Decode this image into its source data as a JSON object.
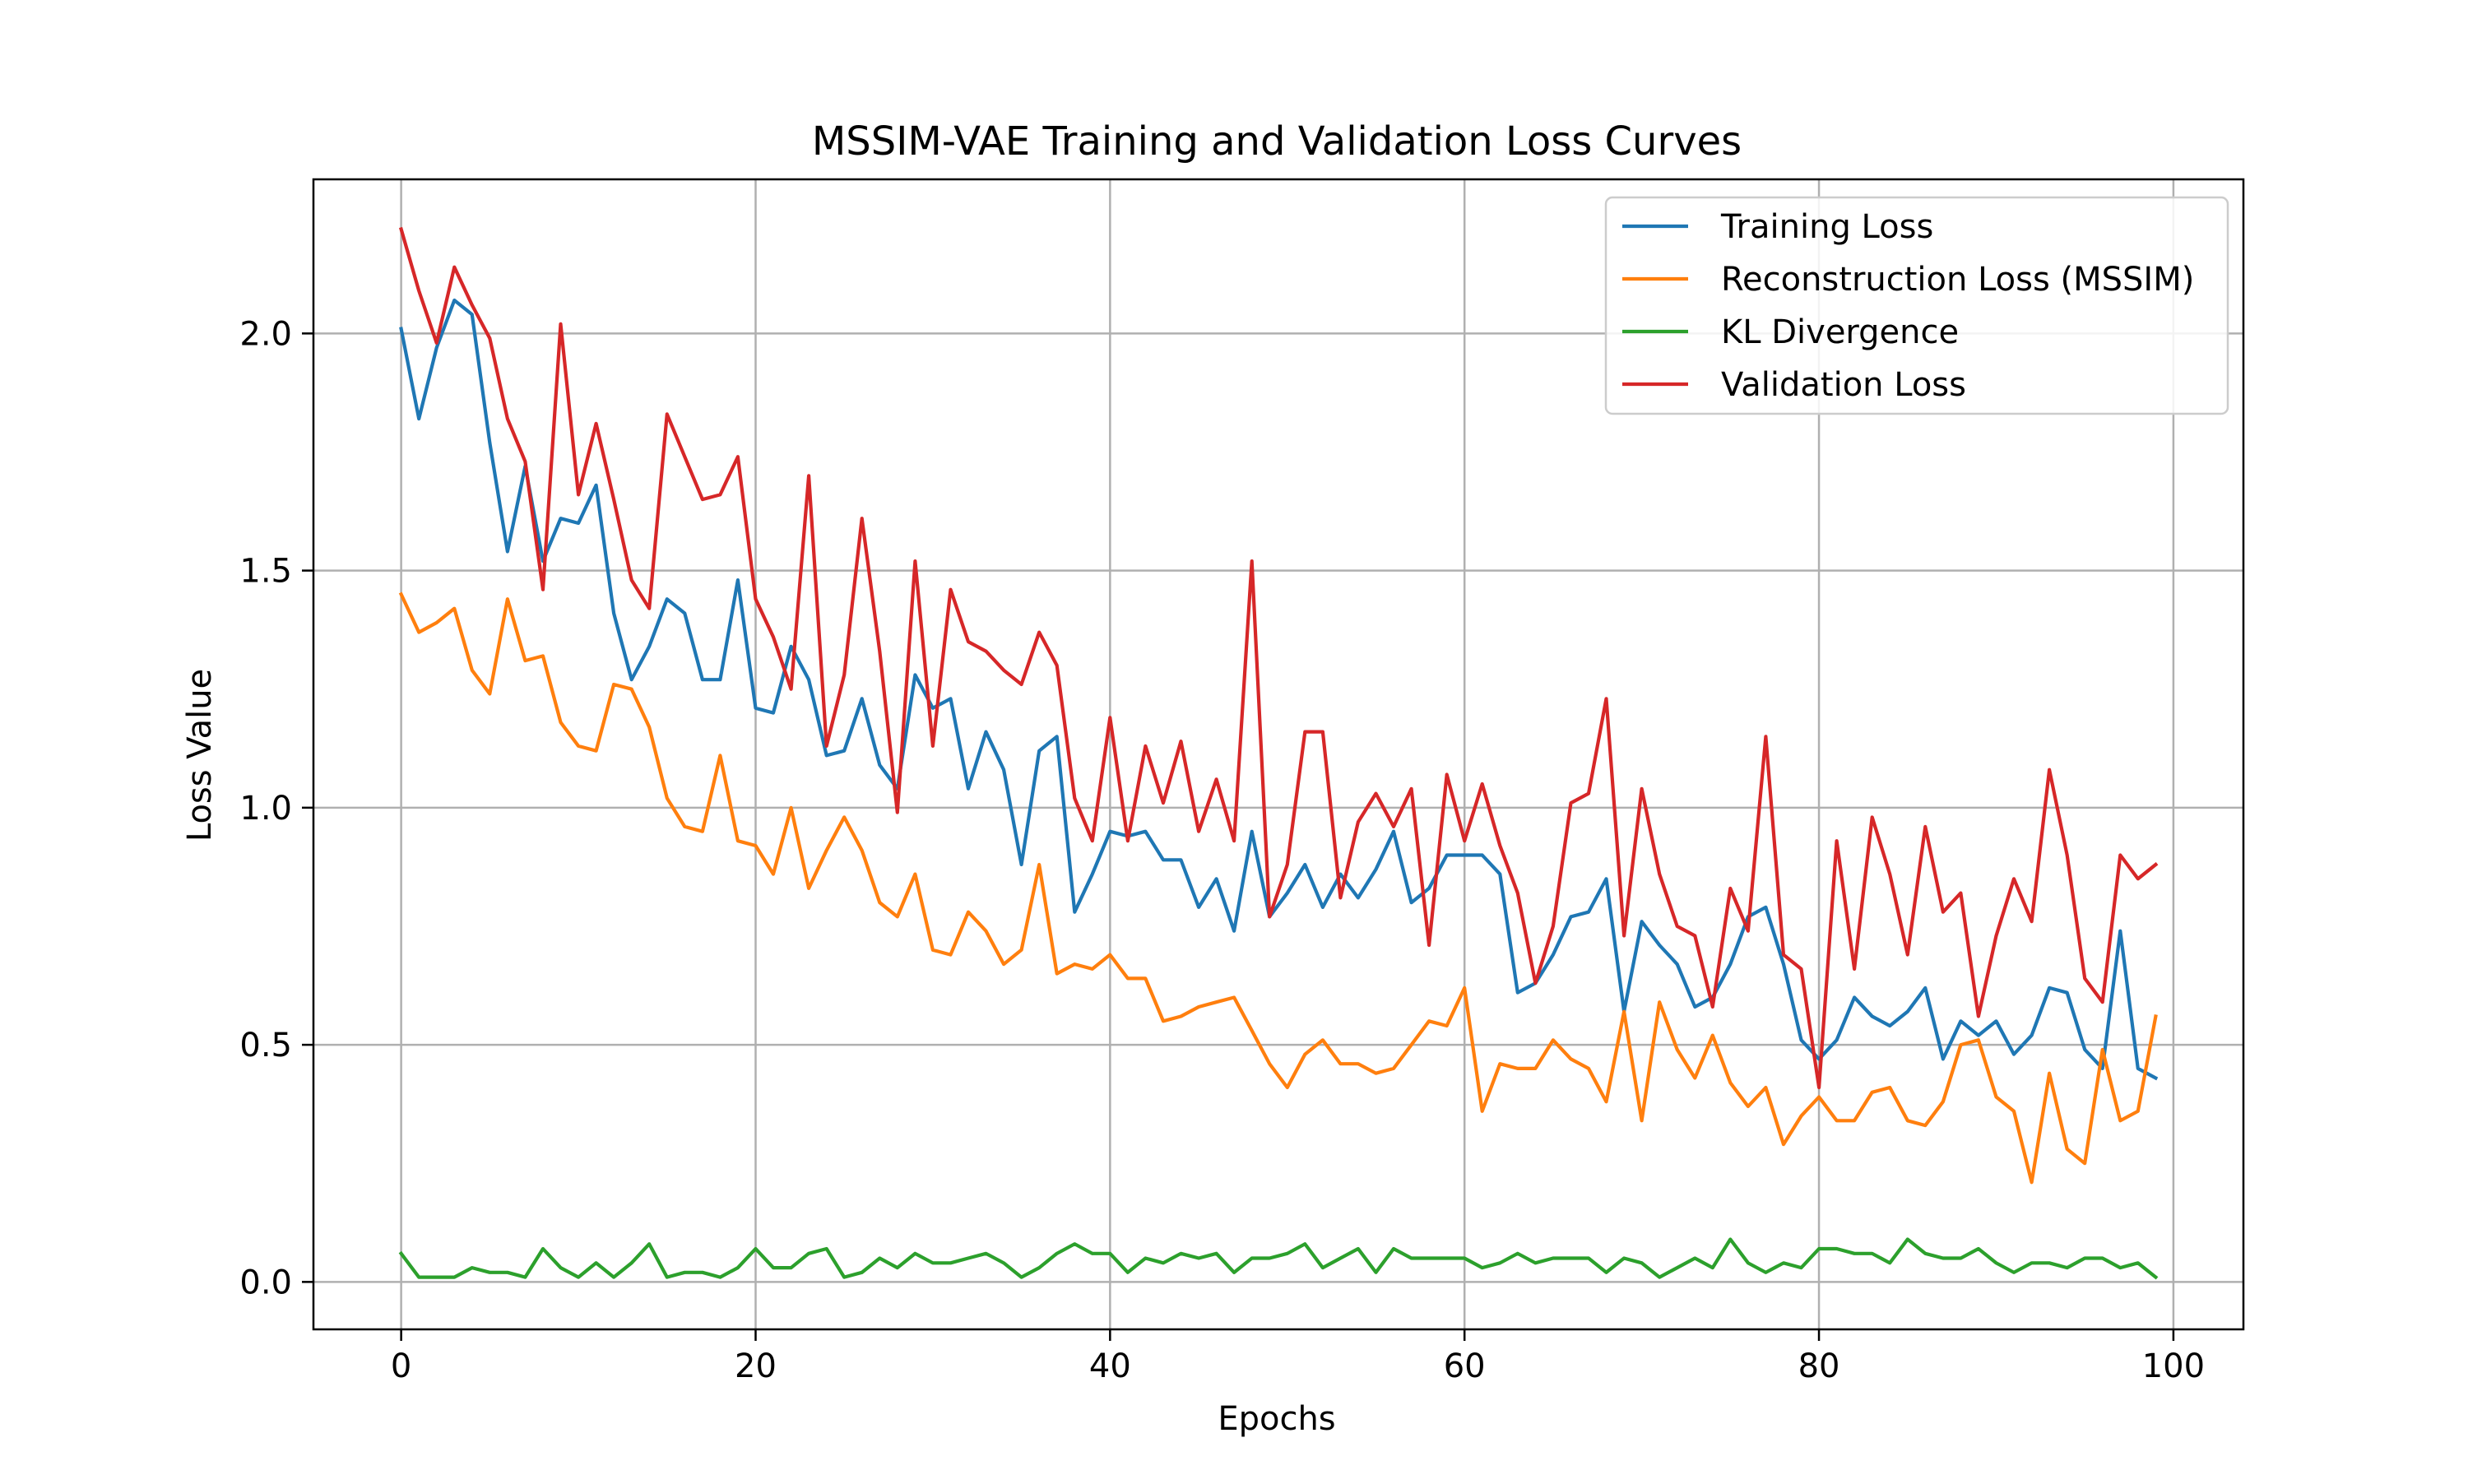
{
  "chart_data": {
    "type": "line",
    "title": "MSSIM-VAE Training and Validation Loss Curves",
    "xlabel": "Epochs",
    "ylabel": "Loss Value",
    "xlim": [
      -4.95,
      103.95
    ],
    "ylim": [
      -0.1,
      2.325
    ],
    "xticks": [
      0,
      20,
      40,
      60,
      80,
      100
    ],
    "yticks": [
      0.0,
      0.5,
      1.0,
      1.5,
      2.0
    ],
    "xtick_labels": [
      "0",
      "20",
      "40",
      "60",
      "80",
      "100"
    ],
    "ytick_labels": [
      "0.0",
      "0.5",
      "1.0",
      "1.5",
      "2.0"
    ],
    "grid": true,
    "legend_position": "top-right",
    "x": [
      0,
      1,
      2,
      3,
      4,
      5,
      6,
      7,
      8,
      9,
      10,
      11,
      12,
      13,
      14,
      15,
      16,
      17,
      18,
      19,
      20,
      21,
      22,
      23,
      24,
      25,
      26,
      27,
      28,
      29,
      30,
      31,
      32,
      33,
      34,
      35,
      36,
      37,
      38,
      39,
      40,
      41,
      42,
      43,
      44,
      45,
      46,
      47,
      48,
      49,
      50,
      51,
      52,
      53,
      54,
      55,
      56,
      57,
      58,
      59,
      60,
      61,
      62,
      63,
      64,
      65,
      66,
      67,
      68,
      69,
      70,
      71,
      72,
      73,
      74,
      75,
      76,
      77,
      78,
      79,
      80,
      81,
      82,
      83,
      84,
      85,
      86,
      87,
      88,
      89,
      90,
      91,
      92,
      93,
      94,
      95,
      96,
      97,
      98,
      99
    ],
    "series": [
      {
        "name": "Training Loss",
        "color": "#1f77b4",
        "values": [
          2.01,
          1.82,
          1.97,
          2.07,
          2.04,
          1.77,
          1.54,
          1.72,
          1.52,
          1.61,
          1.6,
          1.68,
          1.41,
          1.27,
          1.34,
          1.44,
          1.41,
          1.27,
          1.27,
          1.48,
          1.21,
          1.2,
          1.34,
          1.27,
          1.11,
          1.12,
          1.23,
          1.09,
          1.04,
          1.28,
          1.21,
          1.23,
          1.04,
          1.16,
          1.08,
          0.88,
          1.12,
          1.15,
          0.78,
          0.86,
          0.95,
          0.94,
          0.95,
          0.89,
          0.89,
          0.79,
          0.85,
          0.74,
          0.95,
          0.77,
          0.82,
          0.88,
          0.79,
          0.86,
          0.81,
          0.87,
          0.95,
          0.8,
          0.83,
          0.9,
          0.9,
          0.9,
          0.86,
          0.61,
          0.63,
          0.69,
          0.77,
          0.78,
          0.85,
          0.57,
          0.76,
          0.71,
          0.67,
          0.58,
          0.6,
          0.67,
          0.77,
          0.79,
          0.67,
          0.51,
          0.47,
          0.51,
          0.6,
          0.56,
          0.54,
          0.57,
          0.62,
          0.47,
          0.55,
          0.52,
          0.55,
          0.48,
          0.52,
          0.62,
          0.61,
          0.49,
          0.45,
          0.74,
          0.45,
          0.43
        ]
      },
      {
        "name": "Reconstruction Loss (MSSIM)",
        "color": "#ff7f0e",
        "values": [
          1.45,
          1.37,
          1.39,
          1.42,
          1.29,
          1.24,
          1.44,
          1.31,
          1.32,
          1.18,
          1.13,
          1.12,
          1.26,
          1.25,
          1.17,
          1.02,
          0.96,
          0.95,
          1.11,
          0.93,
          0.92,
          0.86,
          1.0,
          0.83,
          0.91,
          0.98,
          0.91,
          0.8,
          0.77,
          0.86,
          0.7,
          0.69,
          0.78,
          0.74,
          0.67,
          0.7,
          0.88,
          0.65,
          0.67,
          0.66,
          0.69,
          0.64,
          0.64,
          0.55,
          0.56,
          0.58,
          0.59,
          0.6,
          0.53,
          0.46,
          0.41,
          0.48,
          0.51,
          0.46,
          0.46,
          0.44,
          0.45,
          0.5,
          0.55,
          0.54,
          0.62,
          0.36,
          0.46,
          0.45,
          0.45,
          0.51,
          0.47,
          0.45,
          0.38,
          0.57,
          0.34,
          0.59,
          0.49,
          0.43,
          0.52,
          0.42,
          0.37,
          0.41,
          0.29,
          0.35,
          0.39,
          0.34,
          0.34,
          0.4,
          0.41,
          0.34,
          0.33,
          0.38,
          0.5,
          0.51,
          0.39,
          0.36,
          0.21,
          0.44,
          0.28,
          0.25,
          0.49,
          0.34,
          0.36,
          0.56
        ]
      },
      {
        "name": "KL Divergence",
        "color": "#2ca02c",
        "values": [
          0.06,
          0.01,
          0.01,
          0.01,
          0.03,
          0.02,
          0.02,
          0.01,
          0.07,
          0.03,
          0.01,
          0.04,
          0.01,
          0.04,
          0.08,
          0.01,
          0.02,
          0.02,
          0.01,
          0.03,
          0.07,
          0.03,
          0.03,
          0.06,
          0.07,
          0.01,
          0.02,
          0.05,
          0.03,
          0.06,
          0.04,
          0.04,
          0.05,
          0.06,
          0.04,
          0.01,
          0.03,
          0.06,
          0.08,
          0.06,
          0.06,
          0.02,
          0.05,
          0.04,
          0.06,
          0.05,
          0.06,
          0.02,
          0.05,
          0.05,
          0.06,
          0.08,
          0.03,
          0.05,
          0.07,
          0.02,
          0.07,
          0.05,
          0.05,
          0.05,
          0.05,
          0.03,
          0.04,
          0.06,
          0.04,
          0.05,
          0.05,
          0.05,
          0.02,
          0.05,
          0.04,
          0.01,
          0.03,
          0.05,
          0.03,
          0.09,
          0.04,
          0.02,
          0.04,
          0.03,
          0.07,
          0.07,
          0.06,
          0.06,
          0.04,
          0.09,
          0.06,
          0.05,
          0.05,
          0.07,
          0.04,
          0.02,
          0.04,
          0.04,
          0.03,
          0.05,
          0.05,
          0.03,
          0.04,
          0.01
        ]
      },
      {
        "name": "Validation Loss",
        "color": "#d62728",
        "values": [
          2.22,
          2.09,
          1.98,
          2.14,
          2.06,
          1.99,
          1.82,
          1.73,
          1.46,
          2.02,
          1.66,
          1.81,
          1.65,
          1.48,
          1.42,
          1.83,
          1.74,
          1.65,
          1.66,
          1.74,
          1.44,
          1.36,
          1.25,
          1.7,
          1.13,
          1.28,
          1.61,
          1.33,
          0.99,
          1.52,
          1.13,
          1.46,
          1.35,
          1.33,
          1.29,
          1.26,
          1.37,
          1.3,
          1.02,
          0.93,
          1.19,
          0.93,
          1.13,
          1.01,
          1.14,
          0.95,
          1.06,
          0.93,
          1.52,
          0.77,
          0.88,
          1.16,
          1.16,
          0.81,
          0.97,
          1.03,
          0.96,
          1.04,
          0.71,
          1.07,
          0.93,
          1.05,
          0.92,
          0.82,
          0.63,
          0.75,
          1.01,
          1.03,
          1.23,
          0.73,
          1.04,
          0.86,
          0.75,
          0.73,
          0.58,
          0.83,
          0.74,
          1.15,
          0.69,
          0.66,
          0.41,
          0.93,
          0.66,
          0.98,
          0.86,
          0.69,
          0.96,
          0.78,
          0.82,
          0.56,
          0.73,
          0.85,
          0.76,
          1.08,
          0.9,
          0.64,
          0.59,
          0.9,
          0.85,
          0.88
        ]
      }
    ]
  }
}
